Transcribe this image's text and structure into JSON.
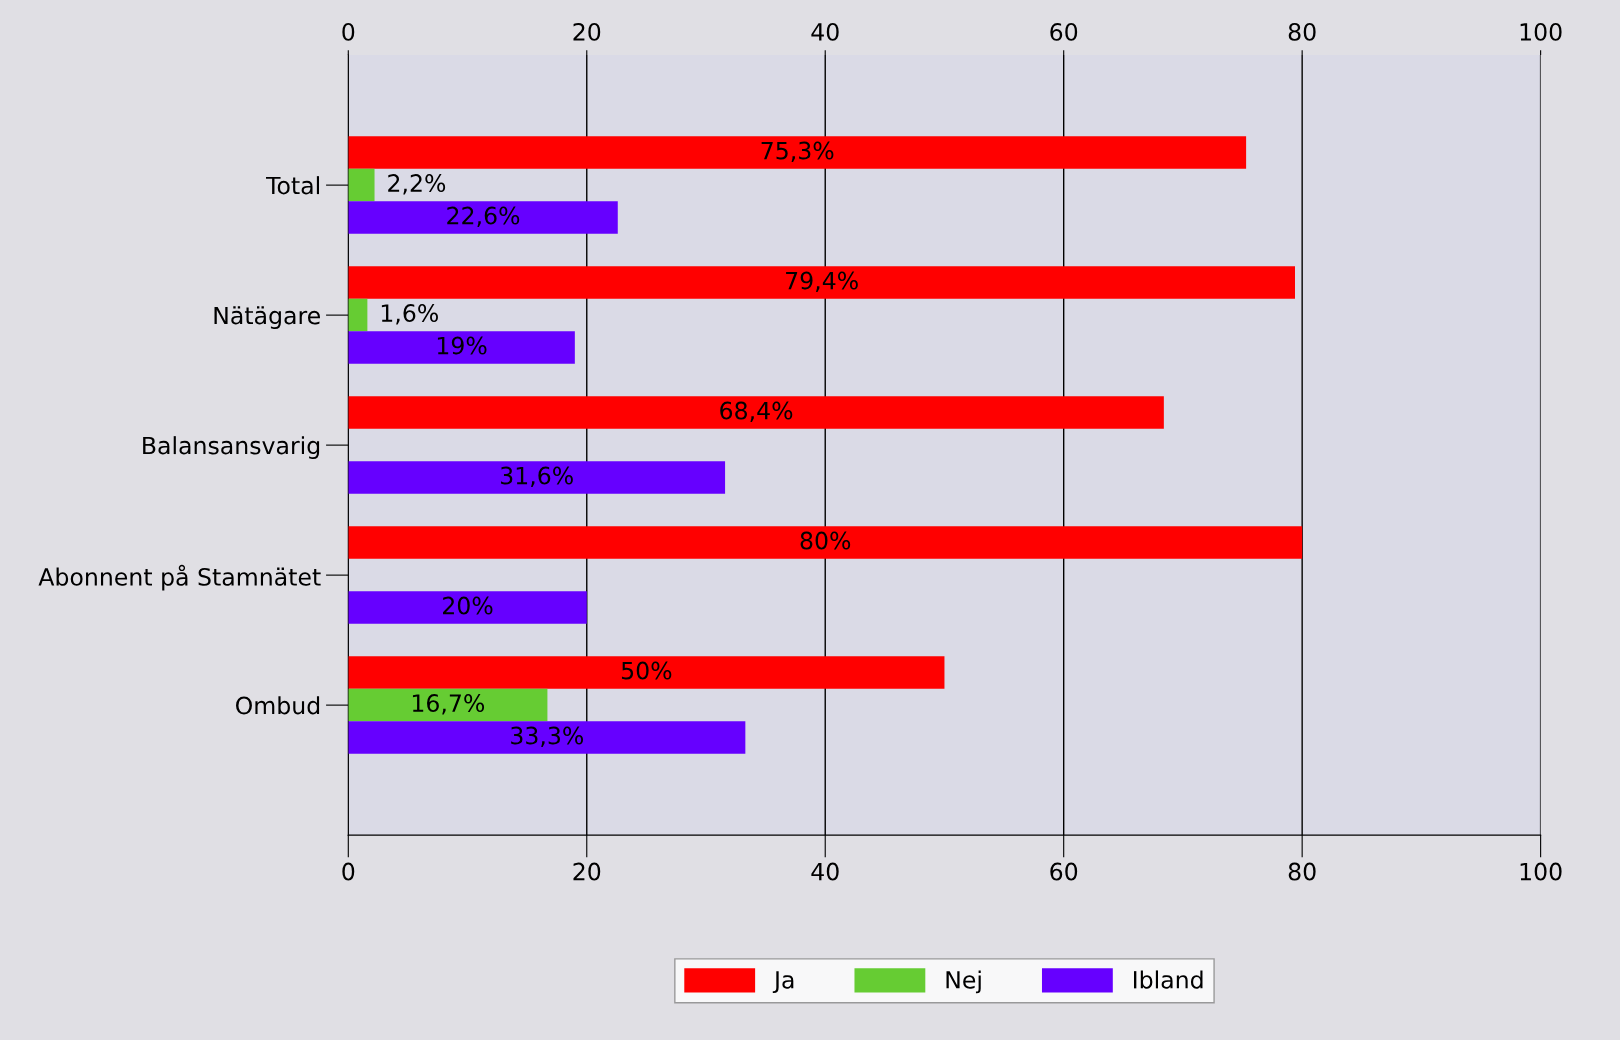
{
  "chart_data": {
    "type": "bar",
    "orientation": "horizontal",
    "categories": [
      "Total",
      "Nätägare",
      "Balansansvarig",
      "Abonnent på Stamnätet",
      "Ombud"
    ],
    "series": [
      {
        "name": "Ja",
        "color": "#ff0000",
        "values": [
          75.3,
          79.4,
          68.4,
          80,
          50
        ],
        "value_labels": [
          "75,3%",
          "79,4%",
          "68,4%",
          "80%",
          "50%"
        ]
      },
      {
        "name": "Nej",
        "color": "#66cc33",
        "values": [
          2.2,
          1.6,
          null,
          null,
          16.7
        ],
        "value_labels": [
          "2,2%",
          "1,6%",
          null,
          null,
          "16,7%"
        ]
      },
      {
        "name": "Ibland",
        "color": "#6600ff",
        "values": [
          22.6,
          19,
          31.6,
          20,
          33.3
        ],
        "value_labels": [
          "22,6%",
          "19%",
          "31,6%",
          "20%",
          "33,3%"
        ]
      }
    ],
    "xlim": [
      0,
      100
    ],
    "xticks": [
      0,
      20,
      40,
      60,
      80,
      100
    ],
    "x2lim": [
      0,
      100
    ],
    "x2ticks": [
      0,
      20,
      40,
      60,
      80,
      100
    ],
    "grid": "x",
    "legend": "bottom"
  }
}
